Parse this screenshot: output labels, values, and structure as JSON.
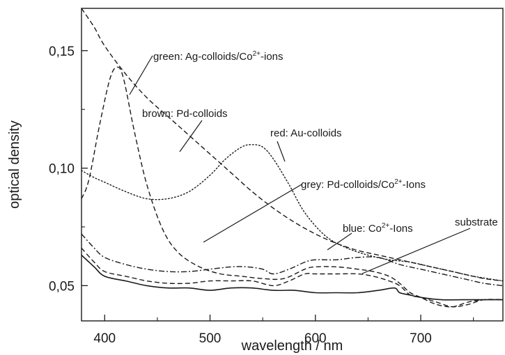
{
  "chart_data": {
    "type": "line",
    "xlabel": "wavelength / nm",
    "ylabel": "optical density",
    "xlim": [
      378,
      778
    ],
    "ylim": [
      0.035,
      0.168
    ],
    "xticks": [
      "400",
      "500",
      "600",
      "700"
    ],
    "yticks": [
      "0,05",
      "0,10",
      "0,15"
    ],
    "grid": false,
    "series": [
      {
        "name": "green: Ag-colloids/Co2+-ions",
        "label_main": "green: Ag-colloids/Co",
        "label_sup": "2+",
        "label_tail": "-ions",
        "style": "dashed",
        "x": [
          378,
          385,
          395,
          405,
          412,
          418,
          428,
          440,
          455,
          470,
          490,
          510,
          530,
          550,
          570,
          590,
          600,
          620,
          640,
          655,
          670,
          680,
          690,
          700,
          715,
          730,
          745,
          760,
          778
        ],
        "y": [
          0.087,
          0.095,
          0.118,
          0.138,
          0.143,
          0.138,
          0.116,
          0.093,
          0.074,
          0.064,
          0.058,
          0.055,
          0.054,
          0.053,
          0.053,
          0.057,
          0.058,
          0.058,
          0.057,
          0.056,
          0.054,
          0.051,
          0.047,
          0.045,
          0.042,
          0.041,
          0.043,
          0.044,
          0.044
        ]
      },
      {
        "name": "brown: Pd-colloids",
        "label_main": "brown: Pd-colloids",
        "style": "dashed",
        "x": [
          378,
          390,
          400,
          420,
          440,
          460,
          480,
          500,
          520,
          540,
          560,
          580,
          600,
          620,
          640,
          660,
          680,
          700,
          720,
          740,
          760,
          778
        ],
        "y": [
          0.168,
          0.16,
          0.152,
          0.14,
          0.13,
          0.122,
          0.114,
          0.106,
          0.098,
          0.09,
          0.083,
          0.077,
          0.072,
          0.068,
          0.065,
          0.063,
          0.061,
          0.059,
          0.057,
          0.055,
          0.053,
          0.052
        ]
      },
      {
        "name": "red: Au-colloids",
        "label_main": "red: Au-colloids",
        "style": "dotted",
        "x": [
          378,
          390,
          400,
          420,
          440,
          460,
          480,
          500,
          515,
          530,
          540,
          550,
          560,
          575,
          590,
          610,
          630,
          650,
          670,
          690,
          710,
          730,
          750,
          778
        ],
        "y": [
          0.099,
          0.096,
          0.094,
          0.09,
          0.087,
          0.087,
          0.09,
          0.097,
          0.104,
          0.109,
          0.11,
          0.109,
          0.104,
          0.093,
          0.081,
          0.071,
          0.066,
          0.063,
          0.061,
          0.06,
          0.058,
          0.056,
          0.054,
          0.052
        ]
      },
      {
        "name": "grey: Pd-colloids/Co2+-Ions",
        "label_main": "grey: Pd-colloids/Co",
        "label_sup": "2+",
        "label_tail": "-Ions",
        "style": "dashed",
        "x": [
          378,
          390,
          400,
          420,
          440,
          460,
          480,
          500,
          520,
          540,
          560,
          575,
          590,
          600,
          620,
          640,
          655,
          670,
          680,
          690,
          700,
          715,
          730,
          745,
          760,
          778
        ],
        "y": [
          0.066,
          0.06,
          0.056,
          0.054,
          0.052,
          0.051,
          0.051,
          0.052,
          0.052,
          0.052,
          0.05,
          0.052,
          0.055,
          0.055,
          0.055,
          0.055,
          0.054,
          0.052,
          0.05,
          0.046,
          0.045,
          0.043,
          0.041,
          0.042,
          0.044,
          0.044
        ]
      },
      {
        "name": "blue: Co2+-Ions",
        "label_main": "blue: Co",
        "label_sup": "2+",
        "label_tail": "-Ions",
        "style": "dashdot",
        "x": [
          378,
          390,
          400,
          420,
          440,
          460,
          480,
          500,
          520,
          535,
          550,
          560,
          575,
          590,
          600,
          620,
          640,
          660,
          680,
          700,
          720,
          740,
          760,
          778
        ],
        "y": [
          0.072,
          0.066,
          0.062,
          0.059,
          0.057,
          0.056,
          0.056,
          0.057,
          0.058,
          0.058,
          0.057,
          0.055,
          0.057,
          0.06,
          0.061,
          0.061,
          0.062,
          0.062,
          0.059,
          0.057,
          0.055,
          0.053,
          0.051,
          0.05
        ]
      },
      {
        "name": "substrate",
        "label_main": "substrate",
        "style": "solid",
        "x": [
          378,
          390,
          400,
          420,
          440,
          460,
          480,
          500,
          520,
          540,
          560,
          580,
          600,
          620,
          640,
          660,
          675,
          680,
          690,
          700,
          720,
          740,
          760,
          778
        ],
        "y": [
          0.063,
          0.058,
          0.054,
          0.052,
          0.05,
          0.049,
          0.049,
          0.048,
          0.049,
          0.049,
          0.048,
          0.048,
          0.047,
          0.047,
          0.047,
          0.048,
          0.049,
          0.047,
          0.046,
          0.045,
          0.044,
          0.044,
          0.044,
          0.044
        ]
      }
    ]
  },
  "colors": {
    "ink": "#1a1a1a"
  }
}
